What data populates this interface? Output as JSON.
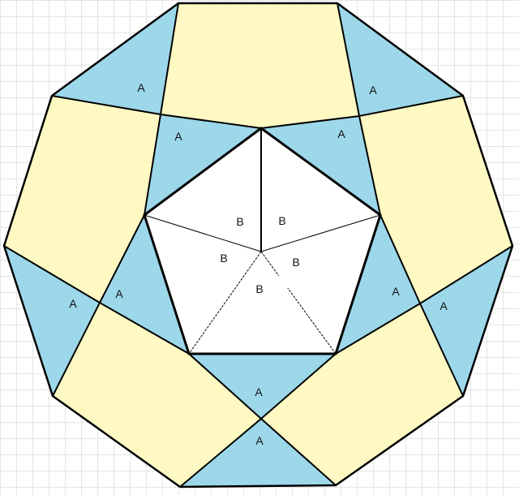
{
  "colors": {
    "yellow": "#fef9c3",
    "blue": "#9dd7ea",
    "outline": "#000000"
  },
  "labels": {
    "A": "A",
    "B": "B"
  }
}
